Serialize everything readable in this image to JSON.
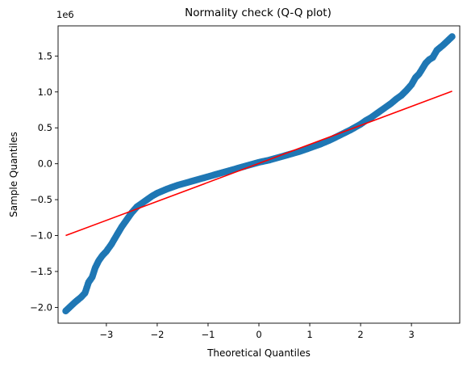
{
  "chart_data": {
    "type": "scatter",
    "title": "Normality check (Q-Q plot)",
    "xlabel": "Theoretical Quantiles",
    "ylabel": "Sample Quantiles",
    "y_offset_text": "1e6",
    "xlim": [
      -3.95,
      3.95
    ],
    "ylim": [
      -2.22,
      1.92
    ],
    "grid": false,
    "x_ticks": [
      -3,
      -2,
      -1,
      0,
      1,
      2,
      3
    ],
    "x_tick_labels": [
      "−3",
      "−2",
      "−1",
      "0",
      "1",
      "2",
      "3"
    ],
    "y_ticks": [
      -2.0,
      -1.5,
      -1.0,
      -0.5,
      0.0,
      0.5,
      1.0,
      1.5
    ],
    "y_tick_labels": [
      "−2.0",
      "−1.5",
      "−1.0",
      "−0.5",
      "0.0",
      "0.5",
      "1.0",
      "1.5"
    ],
    "series": [
      {
        "kind": "points",
        "color": "#1f77b4",
        "x": [
          -3.8,
          -3.62,
          -3.5,
          -3.42,
          -3.35,
          -3.28,
          -3.22,
          -3.15,
          -3.08,
          -3.0,
          -2.9,
          -2.8,
          -2.7,
          -2.6,
          -2.5,
          -2.4,
          -2.3,
          -2.2,
          -2.1,
          -2.0,
          -1.8,
          -1.6,
          -1.4,
          -1.2,
          -1.0,
          -0.8,
          -0.6,
          -0.4,
          -0.2,
          0.0,
          0.2,
          0.4,
          0.6,
          0.8,
          1.0,
          1.2,
          1.4,
          1.6,
          1.8,
          2.0,
          2.1,
          2.2,
          2.3,
          2.4,
          2.5,
          2.6,
          2.7,
          2.8,
          2.9,
          3.0,
          3.08,
          3.15,
          3.22,
          3.28,
          3.35,
          3.42,
          3.5,
          3.62,
          3.8
        ],
        "y": [
          -2.05,
          -1.93,
          -1.86,
          -1.8,
          -1.65,
          -1.58,
          -1.45,
          -1.35,
          -1.28,
          -1.22,
          -1.12,
          -1.0,
          -0.88,
          -0.78,
          -0.68,
          -0.6,
          -0.55,
          -0.5,
          -0.45,
          -0.41,
          -0.35,
          -0.3,
          -0.26,
          -0.22,
          -0.18,
          -0.14,
          -0.1,
          -0.06,
          -0.02,
          0.02,
          0.05,
          0.09,
          0.13,
          0.17,
          0.22,
          0.27,
          0.33,
          0.4,
          0.47,
          0.55,
          0.6,
          0.64,
          0.69,
          0.74,
          0.79,
          0.84,
          0.9,
          0.95,
          1.02,
          1.1,
          1.2,
          1.25,
          1.33,
          1.4,
          1.45,
          1.48,
          1.58,
          1.65,
          1.77
        ]
      },
      {
        "kind": "reference-line",
        "color": "#ff0000",
        "x": [
          -3.8,
          3.8
        ],
        "y": [
          -1.0,
          1.01
        ]
      }
    ]
  }
}
